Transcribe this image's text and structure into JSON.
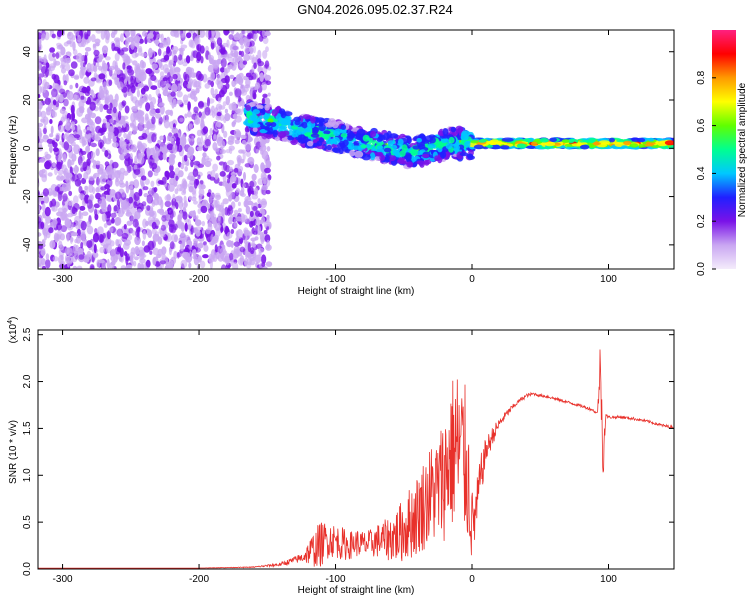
{
  "title": "GN04.2026.095.02.37.R24",
  "chart_data": [
    {
      "type": "heatmap",
      "title": "GN04.2026.095.02.37.R24",
      "xlabel": "Height of straight line (km)",
      "ylabel": "Frequency (Hz)",
      "xlim": [
        -318,
        148
      ],
      "ylim": [
        -50,
        49
      ],
      "x_ticks": [
        "-300",
        "-200",
        "-100",
        "0",
        "100"
      ],
      "y_ticks": [
        "-40",
        "-20",
        "0",
        "20",
        "40"
      ],
      "colorbar": {
        "label": "Normalized spectral amplitude",
        "range": [
          0,
          1
        ],
        "ticks": [
          "0.0",
          "0.2",
          "0.4",
          "0.6",
          "0.8"
        ],
        "colors": [
          "#f4ecfb",
          "#c9a6f2",
          "#7a12e8",
          "#2020ff",
          "#00c8ff",
          "#00ff90",
          "#60ff00",
          "#ffff00",
          "#ff9a00",
          "#ff0000",
          "#ff2080"
        ]
      },
      "regions": [
        {
          "name": "noise",
          "x_range": [
            -318,
            -152
          ],
          "freq_range": [
            -50,
            49
          ]
        },
        {
          "name": "signal_band",
          "points": [
            [
              -165,
              13
            ],
            [
              -140,
              10
            ],
            [
              -120,
              7
            ],
            [
              -100,
              5
            ],
            [
              -80,
              2
            ],
            [
              -60,
              0
            ],
            [
              -45,
              -2
            ],
            [
              -30,
              0
            ],
            [
              -15,
              2
            ],
            [
              0,
              2
            ],
            [
              50,
              2
            ],
            [
              100,
              2
            ],
            [
              148,
              2
            ]
          ]
        }
      ],
      "grid": false
    },
    {
      "type": "line",
      "xlabel": "Height of straight line (km)",
      "ylabel": "SNR (10 * v/v)",
      "y_multiplier_label": "(x10",
      "y_multiplier_exp": "4",
      "xlim": [
        -318,
        148
      ],
      "ylim": [
        0,
        2.55
      ],
      "x_ticks": [
        "-300",
        "-200",
        "-100",
        "0",
        "100"
      ],
      "y_ticks": [
        "0.0",
        "0.5",
        "1.0",
        "1.5",
        "2.0",
        "2.5"
      ],
      "series": [
        {
          "color": "#e8302a",
          "x": [
            -318,
            -250,
            -200,
            -160,
            -140,
            -125,
            -112,
            -105,
            -100,
            -95,
            -90,
            -85,
            -80,
            -75,
            -70,
            -65,
            -60,
            -55,
            -50,
            -45,
            -40,
            -35,
            -30,
            -25,
            -20,
            -16,
            -12,
            -8,
            -4,
            -1,
            0,
            3,
            6,
            10,
            15,
            20,
            25,
            30,
            35,
            40,
            45,
            50,
            55,
            60,
            70,
            80,
            88,
            92,
            94,
            96,
            98,
            100,
            110,
            120,
            130,
            140,
            148
          ],
          "values": [
            0.01,
            0.01,
            0.01,
            0.02,
            0.05,
            0.12,
            0.25,
            0.32,
            0.3,
            0.27,
            0.25,
            0.28,
            0.26,
            0.27,
            0.3,
            0.31,
            0.33,
            0.36,
            0.42,
            0.5,
            0.58,
            0.7,
            0.8,
            0.85,
            1.0,
            1.2,
            1.3,
            1.25,
            1.1,
            0.7,
            0.45,
            0.6,
            0.95,
            1.25,
            1.42,
            1.55,
            1.65,
            1.73,
            1.8,
            1.85,
            1.87,
            1.85,
            1.84,
            1.82,
            1.78,
            1.74,
            1.7,
            1.66,
            2.2,
            1.2,
            1.64,
            1.62,
            1.62,
            1.6,
            1.57,
            1.53,
            1.51
          ],
          "noise_amplitude": [
            0,
            0,
            0,
            0.005,
            0.02,
            0.05,
            0.25,
            0.2,
            0.18,
            0.18,
            0.15,
            0.15,
            0.15,
            0.15,
            0.18,
            0.2,
            0.25,
            0.3,
            0.35,
            0.4,
            0.45,
            0.5,
            0.55,
            0.6,
            0.7,
            0.8,
            0.9,
            0.9,
            0.8,
            0.6,
            0.4,
            0.3,
            0.25,
            0.15,
            0.1,
            0.06,
            0.04,
            0.03,
            0.02,
            0.02,
            0.015,
            0.015,
            0.015,
            0.015,
            0.015,
            0.015,
            0.015,
            0.015,
            0.3,
            0.3,
            0.02,
            0.015,
            0.015,
            0.015,
            0.015,
            0.015,
            0.015
          ]
        }
      ],
      "grid": false
    }
  ]
}
